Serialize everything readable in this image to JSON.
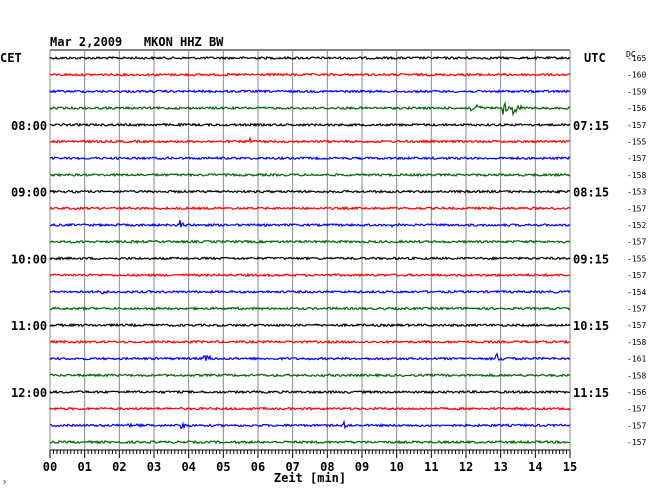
{
  "chart_data": {
    "type": "line",
    "header": "Mar 2,2009   MKON HHZ BW",
    "left_label": "CET",
    "right_label": "UTC",
    "dc_label": "DC",
    "xlabel": "Zeit [min]",
    "xlim": [
      0,
      15
    ],
    "x_ticks": [
      "00",
      "01",
      "02",
      "03",
      "04",
      "05",
      "06",
      "07",
      "08",
      "09",
      "10",
      "11",
      "12",
      "13",
      "14",
      "15"
    ],
    "trace_colors": [
      "#000000",
      "#ff0000",
      "#0000ff",
      "#006600"
    ],
    "left_time_labels": [
      {
        "trace": 4,
        "text": "08:00"
      },
      {
        "trace": 8,
        "text": "09:00"
      },
      {
        "trace": 12,
        "text": "10:00"
      },
      {
        "trace": 16,
        "text": "11:00"
      },
      {
        "trace": 20,
        "text": "12:00"
      }
    ],
    "right_time_labels": [
      {
        "trace": 4,
        "text": "07:15"
      },
      {
        "trace": 8,
        "text": "08:15"
      },
      {
        "trace": 12,
        "text": "09:15"
      },
      {
        "trace": 16,
        "text": "10:15"
      },
      {
        "trace": 20,
        "text": "11:15"
      }
    ],
    "dc_offsets": [
      -165,
      -160,
      -159,
      -156,
      -157,
      -155,
      -157,
      -158,
      -153,
      -157,
      -152,
      -157,
      -155,
      -157,
      -154,
      -157,
      -157,
      -158,
      -161,
      -158,
      -156,
      -157,
      -157,
      -157
    ],
    "events": [
      {
        "trace": 3,
        "minute": 12.2,
        "amp": 9
      },
      {
        "trace": 3,
        "minute": 13.1,
        "amp": 8
      },
      {
        "trace": 3,
        "minute": 13.4,
        "amp": 9
      },
      {
        "trace": 5,
        "minute": 5.8,
        "amp": 4
      },
      {
        "trace": 10,
        "minute": 3.8,
        "amp": 4
      },
      {
        "trace": 10,
        "minute": 9.9,
        "amp": 3
      },
      {
        "trace": 14,
        "minute": 1.4,
        "amp": 3
      },
      {
        "trace": 18,
        "minute": 4.5,
        "amp": 6
      },
      {
        "trace": 18,
        "minute": 12.9,
        "amp": 6
      },
      {
        "trace": 22,
        "minute": 2.3,
        "amp": 3
      },
      {
        "trace": 22,
        "minute": 3.8,
        "amp": 4
      },
      {
        "trace": 22,
        "minute": 8.5,
        "amp": 3
      }
    ],
    "corner_mark": "³"
  }
}
